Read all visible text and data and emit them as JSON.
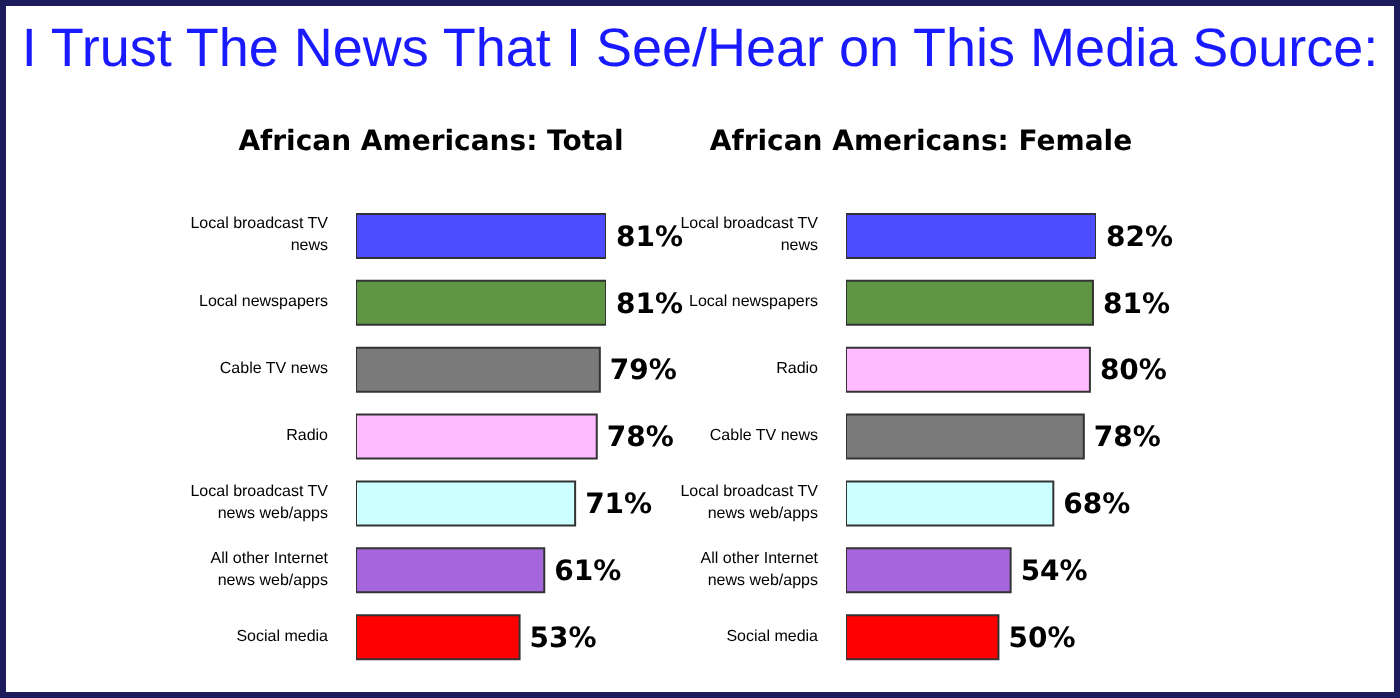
{
  "chart_data": [
    {
      "type": "other",
      "title": "I Trust The News That I See/Hear on This Media Source:"
    },
    {
      "type": "bar",
      "orientation": "horizontal",
      "title": "African Americans: Total",
      "categories": [
        "Local broadcast TV news",
        "Local newspapers",
        "Cable TV news",
        "Radio",
        "Local broadcast TV news web/apps",
        "All other Internet news web/apps",
        "Social media"
      ],
      "values": [
        81,
        81,
        79,
        78,
        71,
        61,
        53
      ],
      "value_labels": [
        "81%",
        "81%",
        "79%",
        "78%",
        "71%",
        "61%",
        "53%"
      ],
      "colors": [
        "#4d4dff",
        "#5e9644",
        "#7a7a7a",
        "#ffbbff",
        "#ccffff",
        "#a566dd",
        "#ff0000"
      ],
      "legend": false,
      "grid": false
    },
    {
      "type": "bar",
      "orientation": "horizontal",
      "title": "African Americans: Female",
      "categories": [
        "Local broadcast TV news",
        "Local newspapers",
        "Radio",
        "Cable TV news",
        "Local broadcast TV news web/apps",
        "All other Internet news web/apps",
        "Social media"
      ],
      "values": [
        82,
        81,
        80,
        78,
        68,
        54,
        50
      ],
      "value_labels": [
        "82%",
        "81%",
        "80%",
        "78%",
        "68%",
        "54%",
        "50%"
      ],
      "colors": [
        "#4d4dff",
        "#5e9644",
        "#ffbbff",
        "#7a7a7a",
        "#ccffff",
        "#a566dd",
        "#ff0000"
      ],
      "legend": false,
      "grid": false
    }
  ]
}
